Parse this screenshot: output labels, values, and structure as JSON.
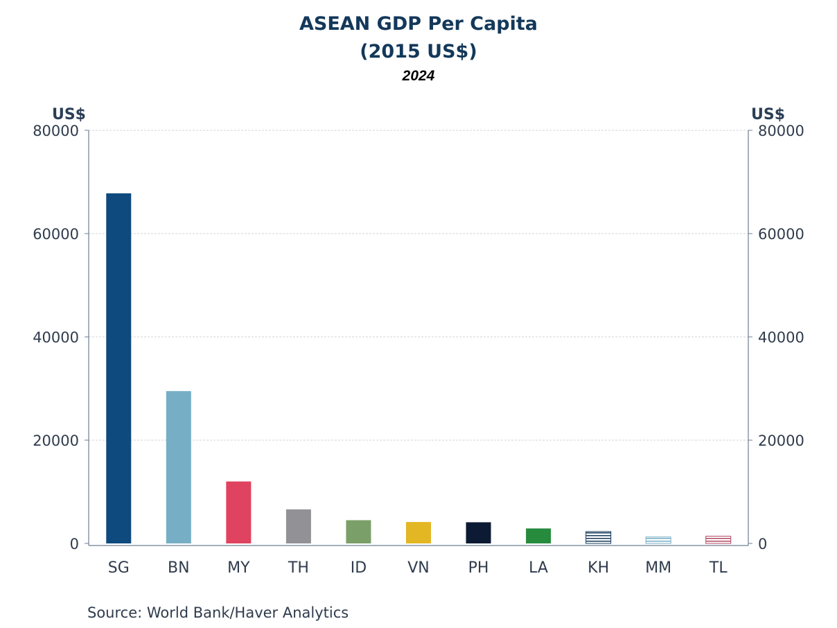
{
  "chart_data": {
    "type": "bar",
    "title": "ASEAN GDP Per Capita",
    "title_line2": "(2015 US$)",
    "subtitle": "2024",
    "ylabel_left": "US$",
    "ylabel_right": "US$",
    "ylim": [
      0,
      80000
    ],
    "yticks": [
      "0",
      "20000",
      "40000",
      "60000",
      "80000"
    ],
    "grid": true,
    "categories": [
      "SG",
      "BN",
      "MY",
      "TH",
      "ID",
      "VN",
      "PH",
      "LA",
      "KH",
      "MM",
      "TL"
    ],
    "values": [
      67800,
      29500,
      12000,
      6600,
      4500,
      4150,
      4100,
      2900,
      2300,
      1250,
      1400
    ],
    "colors": [
      "#0f4a7e",
      "#76aec5",
      "#e0435f",
      "#929296",
      "#7b9f68",
      "#e2b723",
      "#0c1a33",
      "#278b3d",
      "#13385a",
      "#76aec5",
      "#b04560"
    ],
    "patterns": [
      "solid",
      "solid",
      "solid",
      "solid",
      "solid",
      "solid",
      "solid",
      "solid",
      "hatch",
      "hatch",
      "hatch"
    ],
    "source": "Source:  World Bank/Haver Analytics"
  }
}
